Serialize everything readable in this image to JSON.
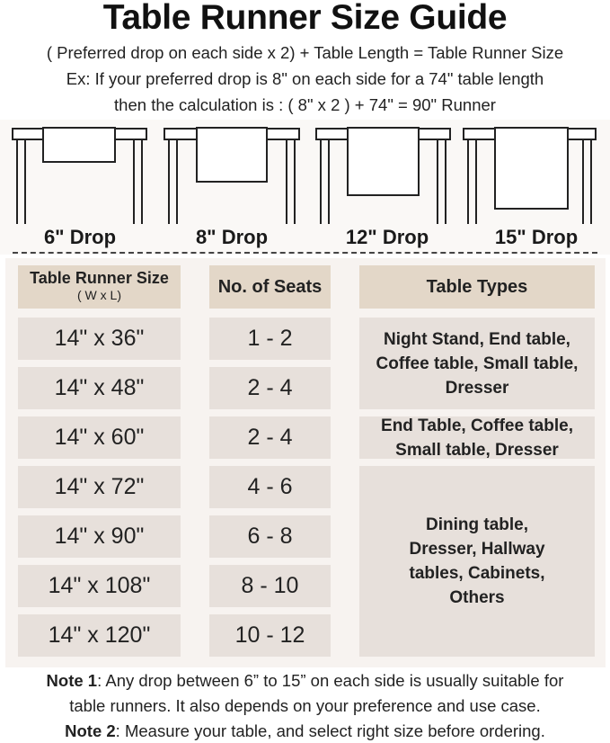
{
  "title": "Table Runner Size Guide",
  "formula": "( Preferred drop on each side x 2) + Table Length = Table Runner Size",
  "example_line1": "Ex: If your preferred drop is 8\" on each side for a 74\" table length",
  "example_line2": "then the calculation is : ( 8\" x 2 ) + 74\" = 90\" Runner",
  "drops": [
    {
      "label": "6\" Drop",
      "value_in": 6
    },
    {
      "label": "8\" Drop",
      "value_in": 8
    },
    {
      "label": "12\" Drop",
      "value_in": 12
    },
    {
      "label": "15\" Drop",
      "value_in": 15
    }
  ],
  "table": {
    "headers": {
      "size": "Table Runner Size",
      "size_sub": "( W x L)",
      "seats": "No. of Seats",
      "types": "Table Types"
    },
    "rows": [
      {
        "size": "14\" x 36\"",
        "seats": "1 - 2"
      },
      {
        "size": "14\" x 48\"",
        "seats": "2 - 4"
      },
      {
        "size": "14\" x 60\"",
        "seats": "2 - 4"
      },
      {
        "size": "14\" x 72\"",
        "seats": "4 - 6"
      },
      {
        "size": "14\" x 90\"",
        "seats": "6 - 8"
      },
      {
        "size": "14\" x 108\"",
        "seats": "8 - 10"
      },
      {
        "size": "14\" x 120\"",
        "seats": "10 - 12"
      }
    ],
    "types": [
      "Night Stand, End table, Coffee table, Small table, Dresser",
      "End Table, Coffee table, Small table, Dresser",
      "Dining table, Dresser, Hallway tables, Cabinets, Others"
    ]
  },
  "notes": {
    "note1_label": "Note 1",
    "note1_text": ": Any drop between 6” to 15” on each side is usually suitable for",
    "note1_text2": "table runners. It also depends on your preference and use case.",
    "note2_label": "Note 2",
    "note2_text": ": Measure your table, and select right size before ordering."
  },
  "colors": {
    "header_cell": "#e3d7c8",
    "body_cell": "#e7e0db",
    "table_background": "#f7f3f0"
  }
}
